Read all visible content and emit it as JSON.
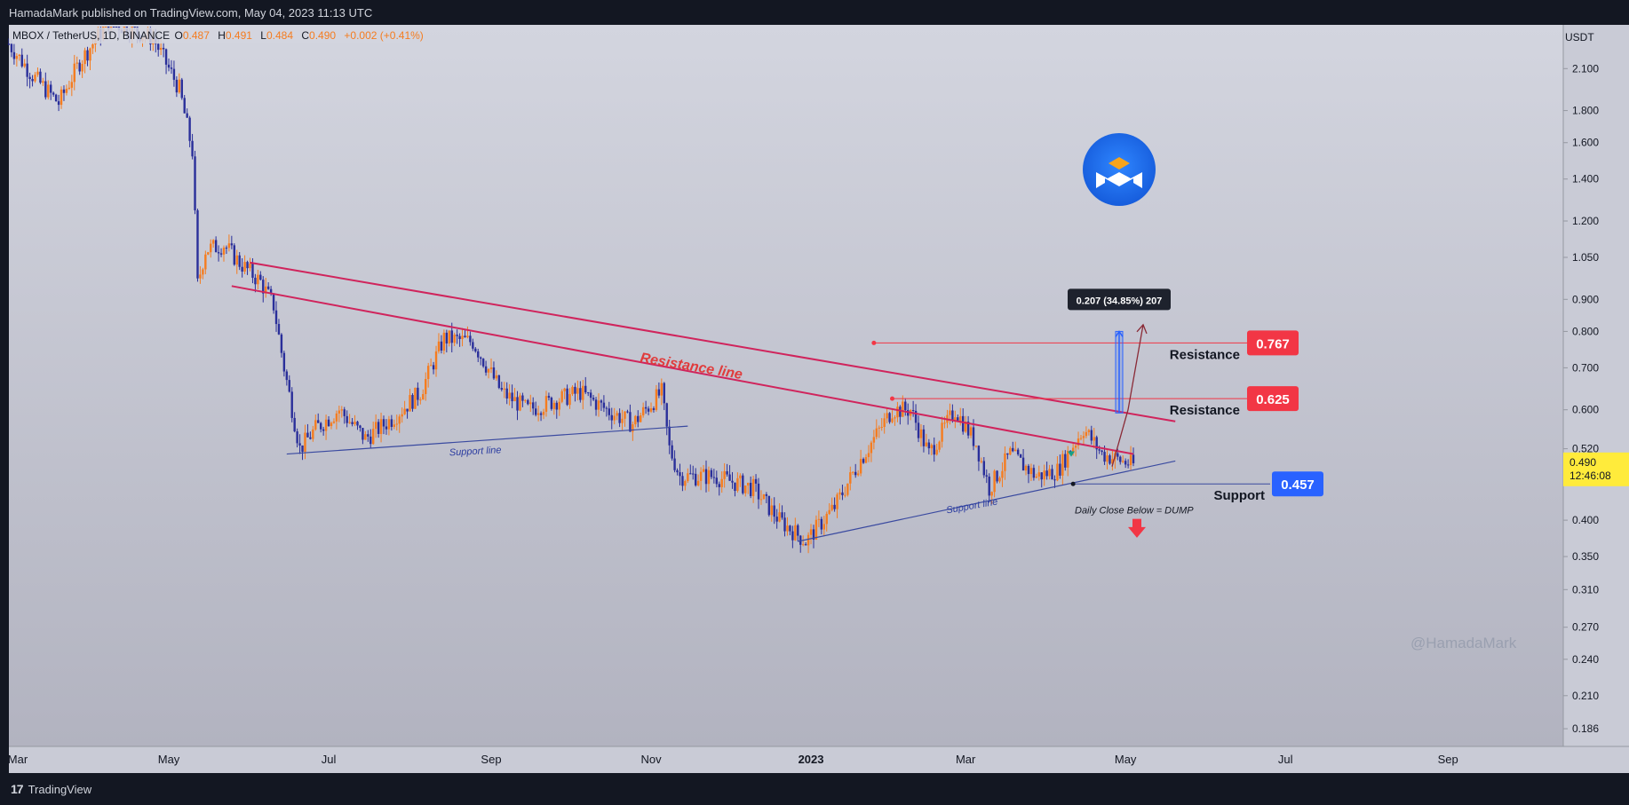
{
  "header": {
    "published": "HamadaMark published on TradingView.com, May 04, 2023 11:13 UTC"
  },
  "legend": {
    "symbol": "MBOX / TetherUS, 1D, BINANCE",
    "o_label": "O",
    "o": "0.487",
    "h_label": "H",
    "h": "0.491",
    "l_label": "L",
    "l": "0.484",
    "c_label": "C",
    "c": "0.490",
    "change": "+0.002 (+0.41%)"
  },
  "footer": {
    "brand": "TradingView"
  },
  "watermark": "@HamadaMark",
  "colors": {
    "background_top": "#d3d5df",
    "background_bottom": "#b2b3c0",
    "candle_up": "#f57c1f",
    "candle_down": "#2a2f9a",
    "resistance_line": "#d0245c",
    "support_line": "#3a4aa0",
    "resistance_badge": "#f23645",
    "support_badge": "#2962ff",
    "last_price_badge": "#ffeb3b"
  },
  "chart_data": {
    "type": "candlestick",
    "y_scale": "log",
    "ylim": [
      0.176,
      2.45
    ],
    "y_unit": "USDT",
    "y_ticks": [
      "2.100",
      "1.800",
      "1.600",
      "1.400",
      "1.200",
      "1.050",
      "0.900",
      "0.800",
      "0.700",
      "0.600",
      "0.520",
      "0.400",
      "0.350",
      "0.310",
      "0.270",
      "0.240",
      "0.210",
      "0.186"
    ],
    "x_ticks": [
      "Mar",
      "May",
      "Jul",
      "Sep",
      "Nov",
      "2023",
      "Mar",
      "May",
      "Jul",
      "Sep"
    ],
    "x_range": [
      "2022-03-01",
      "2023-10-15"
    ],
    "last_price": "0.490",
    "countdown": "12:46:08",
    "price_path": [
      [
        "2022-03-01",
        2.3
      ],
      [
        "2022-03-10",
        2.05
      ],
      [
        "2022-03-20",
        1.85
      ],
      [
        "2022-03-28",
        2.15
      ],
      [
        "2022-04-08",
        2.5
      ],
      [
        "2022-04-25",
        2.35
      ],
      [
        "2022-05-01",
        2.1
      ],
      [
        "2022-05-05",
        1.95
      ],
      [
        "2022-05-10",
        1.55
      ],
      [
        "2022-05-12",
        0.95
      ],
      [
        "2022-05-15",
        1.08
      ],
      [
        "2022-05-22",
        1.1
      ],
      [
        "2022-05-28",
        1.03
      ],
      [
        "2022-06-05",
        0.96
      ],
      [
        "2022-06-10",
        0.88
      ],
      [
        "2022-06-14",
        0.7
      ],
      [
        "2022-06-20",
        0.52
      ],
      [
        "2022-06-26",
        0.56
      ],
      [
        "2022-07-05",
        0.6
      ],
      [
        "2022-07-15",
        0.54
      ],
      [
        "2022-07-25",
        0.58
      ],
      [
        "2022-08-05",
        0.64
      ],
      [
        "2022-08-14",
        0.78
      ],
      [
        "2022-08-25",
        0.77
      ],
      [
        "2022-09-05",
        0.64
      ],
      [
        "2022-09-15",
        0.6
      ],
      [
        "2022-09-25",
        0.62
      ],
      [
        "2022-10-05",
        0.64
      ],
      [
        "2022-10-15",
        0.6
      ],
      [
        "2022-10-25",
        0.57
      ],
      [
        "2022-11-05",
        0.64
      ],
      [
        "2022-11-08",
        0.52
      ],
      [
        "2022-11-12",
        0.47
      ],
      [
        "2022-11-25",
        0.47
      ],
      [
        "2022-12-10",
        0.45
      ],
      [
        "2022-12-20",
        0.4
      ],
      [
        "2022-12-30",
        0.37
      ],
      [
        "2023-01-10",
        0.42
      ],
      [
        "2023-01-20",
        0.5
      ],
      [
        "2023-02-01",
        0.6
      ],
      [
        "2023-02-08",
        0.6
      ],
      [
        "2023-02-15",
        0.51
      ],
      [
        "2023-02-25",
        0.6
      ],
      [
        "2023-03-05",
        0.53
      ],
      [
        "2023-03-10",
        0.45
      ],
      [
        "2023-03-18",
        0.51
      ],
      [
        "2023-03-28",
        0.47
      ],
      [
        "2023-04-05",
        0.48
      ],
      [
        "2023-04-15",
        0.56
      ],
      [
        "2023-04-22",
        0.51
      ],
      [
        "2023-05-04",
        0.49
      ]
    ],
    "lines": [
      {
        "label": "Resistance line",
        "from": [
          "2022-06-01",
          1.03
        ],
        "to": [
          "2023-05-20",
          0.575
        ],
        "color": "#d0245c"
      },
      {
        "label": "",
        "from": [
          "2022-05-25",
          0.945
        ],
        "to": [
          "2023-05-04",
          0.51
        ],
        "color": "#d0245c"
      },
      {
        "label": "Support line",
        "from": [
          "2022-06-15",
          0.51
        ],
        "to": [
          "2022-11-15",
          0.565
        ],
        "color": "#3a4aa0"
      },
      {
        "label": "Support line",
        "from": [
          "2022-12-27",
          0.37
        ],
        "to": [
          "2023-05-20",
          0.497
        ],
        "color": "#3a4aa0"
      }
    ],
    "levels": [
      {
        "label": "Resistance",
        "value": 0.767,
        "text": "0.767",
        "from": "2023-01-25"
      },
      {
        "label": "Resistance",
        "value": 0.625,
        "text": "0.625",
        "from": "2023-02-01"
      },
      {
        "label": "Support",
        "value": 0.457,
        "text": "0.457",
        "from": "2023-04-11"
      }
    ],
    "measurement": {
      "label": "0.207 (34.85%) 207",
      "from": 0.593,
      "to": 0.8
    },
    "annotations": [
      "Daily Close Below = DUMP"
    ]
  }
}
